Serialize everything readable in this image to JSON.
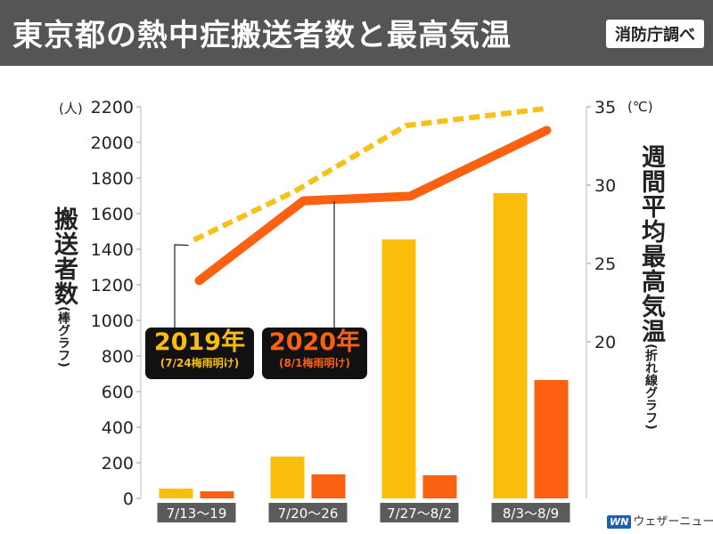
{
  "header": {
    "title": "東京都の熱中症搬送者数と最高気温",
    "source": "消防庁調べ"
  },
  "axes": {
    "left_label": "搬送者数",
    "left_label_note": "(棒グラフ)",
    "left_unit": "(人)",
    "right_label": "週間平均最高気温",
    "right_label_note": "(折れ線グラフ)",
    "right_unit": "(℃)"
  },
  "callouts": {
    "y2019": {
      "year": "2019年",
      "note": "(7/24梅雨明け)"
    },
    "y2020": {
      "year": "2020年",
      "note": "(8/1梅雨明け)"
    }
  },
  "logo": {
    "mark": "WN",
    "text": "ウェザーニュース"
  },
  "colors": {
    "y2019": "#fbbd0b",
    "y2019_line": "#f6c21a",
    "y2020": "#fb6110",
    "header_bg": "#555555",
    "tick_bg": "#5b5b5b"
  },
  "chart_data": {
    "type": "bar",
    "categories": [
      "7/13〜19",
      "7/20〜26",
      "7/27〜8/2",
      "8/3〜8/9"
    ],
    "series": [
      {
        "name": "2019年",
        "values": [
          55,
          235,
          1455,
          1715
        ]
      },
      {
        "name": "2020年",
        "values": [
          40,
          135,
          130,
          665
        ]
      }
    ],
    "ylim": [
      0,
      2200
    ],
    "yticks": [
      0,
      200,
      400,
      600,
      800,
      1000,
      1200,
      1400,
      1600,
      1800,
      2000,
      2200
    ],
    "ylabel": "搬送者数",
    "lines": [
      {
        "name": "2019年",
        "style": "dashed",
        "values": [
          26.5,
          29.6,
          33.8,
          34.9
        ]
      },
      {
        "name": "2020年",
        "style": "solid",
        "values": [
          23.9,
          29.0,
          29.3,
          33.5
        ]
      }
    ],
    "y2lim": [
      10,
      35
    ],
    "y2ticks": [
      20,
      25,
      30,
      35
    ],
    "y2label": "週間平均最高気温",
    "grid": false
  }
}
